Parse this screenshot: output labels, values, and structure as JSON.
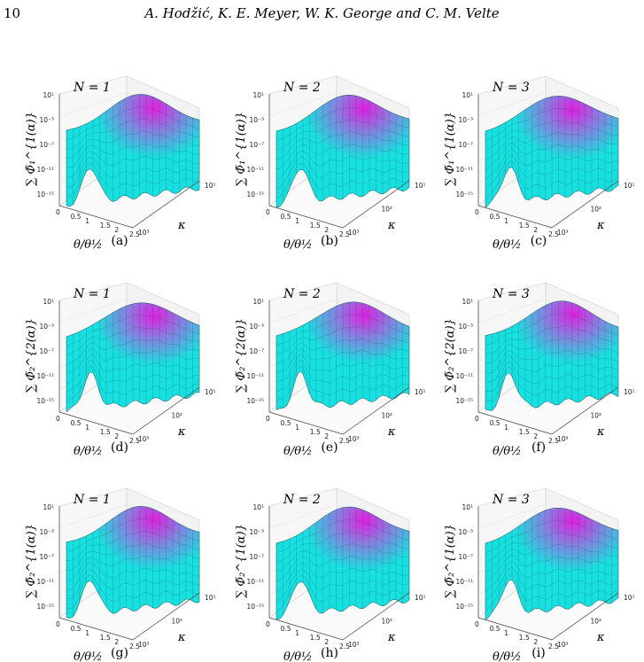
{
  "header": {
    "page_number": "10",
    "authors": "A. Hodžić, K. E. Meyer, W. K. George and C. M. Velte"
  },
  "colors": {
    "surface_low": "#19e0e0",
    "surface_high": "#e020e0",
    "mesh": "#0a3a3a"
  },
  "axes": {
    "x_label": "θ/θ½",
    "x_ticks": [
      "0",
      "0.5",
      "1",
      "1.5",
      "2",
      "2.5"
    ],
    "k_label": "κ",
    "k_ticks": [
      "10³",
      "10²",
      "10¹"
    ],
    "z_ticks": [
      "10¹",
      "10⁻³",
      "10⁻⁷",
      "10⁻¹¹",
      "10⁻¹⁵"
    ]
  },
  "panels": [
    {
      "caption": "(a)",
      "n_label": "N = 1",
      "ylabel": "Φ̃₁^{1(α)}",
      "k_ticks": [
        "10³",
        "10¹"
      ]
    },
    {
      "caption": "(b)",
      "n_label": "N = 2",
      "ylabel": "Φ̃₁^{1(α)}",
      "k_ticks": [
        "10³",
        "10²",
        "10¹"
      ]
    },
    {
      "caption": "(c)",
      "n_label": "N = 3",
      "ylabel": "Φ̃₁^{1(α)}",
      "k_ticks": [
        "10³",
        "10²",
        "10¹"
      ]
    },
    {
      "caption": "(d)",
      "n_label": "N = 1",
      "ylabel": "Φ̃₂^{2(α)}",
      "k_ticks": [
        "10³",
        "10²",
        "10¹"
      ]
    },
    {
      "caption": "(e)",
      "n_label": "N = 2",
      "ylabel": "Φ̃₂^{2(α)}",
      "k_ticks": [
        "10³",
        "10²",
        "10¹"
      ]
    },
    {
      "caption": "(f)",
      "n_label": "N = 3",
      "ylabel": "Φ̃₂^{2(α)}",
      "k_ticks": [
        "10³",
        "10²",
        "10¹"
      ]
    },
    {
      "caption": "(g)",
      "n_label": "N = 1",
      "ylabel": "Φ̃₂^{1(α)}",
      "k_ticks": [
        "10³",
        "10²",
        "10¹"
      ]
    },
    {
      "caption": "(h)",
      "n_label": "N = 2",
      "ylabel": "Φ̃₂^{1(α)}",
      "k_ticks": [
        "10³",
        "10²",
        "10¹"
      ]
    },
    {
      "caption": "(i)",
      "n_label": "N = 3",
      "ylabel": "Φ̃₂^{1(α)}",
      "k_ticks": [
        "10³",
        "10²",
        "10¹"
      ]
    }
  ]
}
